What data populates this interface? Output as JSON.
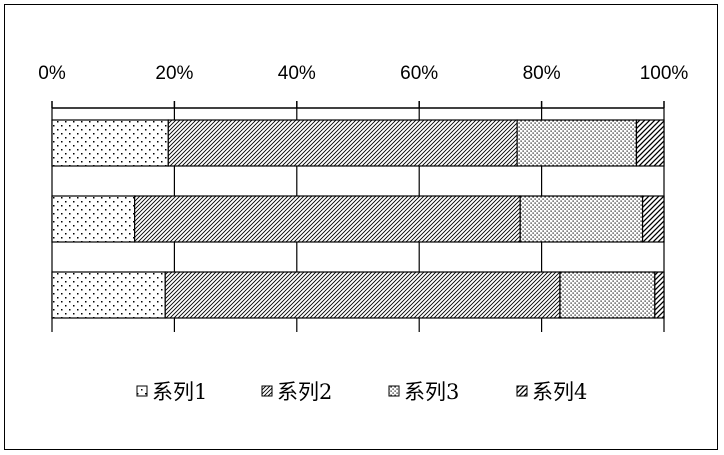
{
  "chart_data": {
    "type": "bar",
    "orientation": "horizontal",
    "stacked": "percent",
    "title": "",
    "xlabel": "",
    "ylabel": "",
    "xlim": [
      0,
      100
    ],
    "x_ticks": [
      "0%",
      "20%",
      "40%",
      "60%",
      "80%",
      "100%"
    ],
    "x_axis_position": "top",
    "grid": "vertical gridlines",
    "legend_position": "bottom",
    "categories": [
      "",
      "",
      ""
    ],
    "series": [
      {
        "name": "系列1",
        "pattern": "dots-sparse",
        "values": [
          19,
          13.5,
          18.5
        ]
      },
      {
        "name": "系列2",
        "pattern": "diagonal-dense",
        "values": [
          57,
          63,
          64.5
        ]
      },
      {
        "name": "系列3",
        "pattern": "dots-dense",
        "values": [
          19.5,
          20,
          15.5
        ]
      },
      {
        "name": "系列4",
        "pattern": "diagonal-wide",
        "values": [
          4.5,
          3.5,
          1.5
        ]
      }
    ]
  }
}
